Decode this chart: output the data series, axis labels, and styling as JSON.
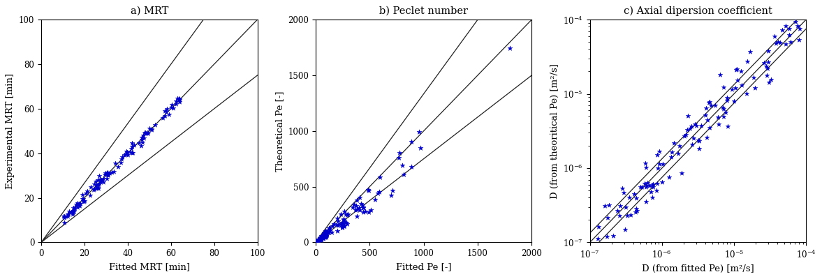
{
  "panel_a": {
    "title": "a) MRT",
    "xlabel": "Fitted MRT [min]",
    "ylabel": "Experimental MRT [min]",
    "xlim": [
      0,
      100
    ],
    "ylim": [
      0,
      100
    ],
    "line_slopes": [
      1.0,
      0.75,
      1.333
    ],
    "scatter_color": "#0000CC",
    "marker": "*",
    "markersize": 5
  },
  "panel_b": {
    "title": "b) Peclet number",
    "xlabel": "Fitted Pe [-]",
    "ylabel": "Theoretical Pe [-]",
    "xlim": [
      0,
      2000
    ],
    "ylim": [
      0,
      2000
    ],
    "line_slopes": [
      1.0,
      0.75,
      1.333
    ],
    "scatter_color": "#0000CC",
    "marker": "*",
    "markersize": 5
  },
  "panel_c": {
    "title": "c) Axial dipersion coefficient",
    "xlabel": "D (from fitted Pe) [m²/s]",
    "ylabel": "D (from theoritical Pe) [m²/s]",
    "xlim_log": [
      -7,
      -4
    ],
    "ylim_log": [
      -7,
      -4
    ],
    "line_slopes": [
      1.0,
      0.75,
      1.333
    ],
    "scatter_color": "#0000CC",
    "marker": "*",
    "markersize": 5
  },
  "figure_bg": "#ffffff",
  "axes_bg": "#ffffff",
  "line_color": "#222222",
  "line_width": 0.9,
  "tick_fontsize": 8.5,
  "label_fontsize": 9.5,
  "title_fontsize": 10.5
}
